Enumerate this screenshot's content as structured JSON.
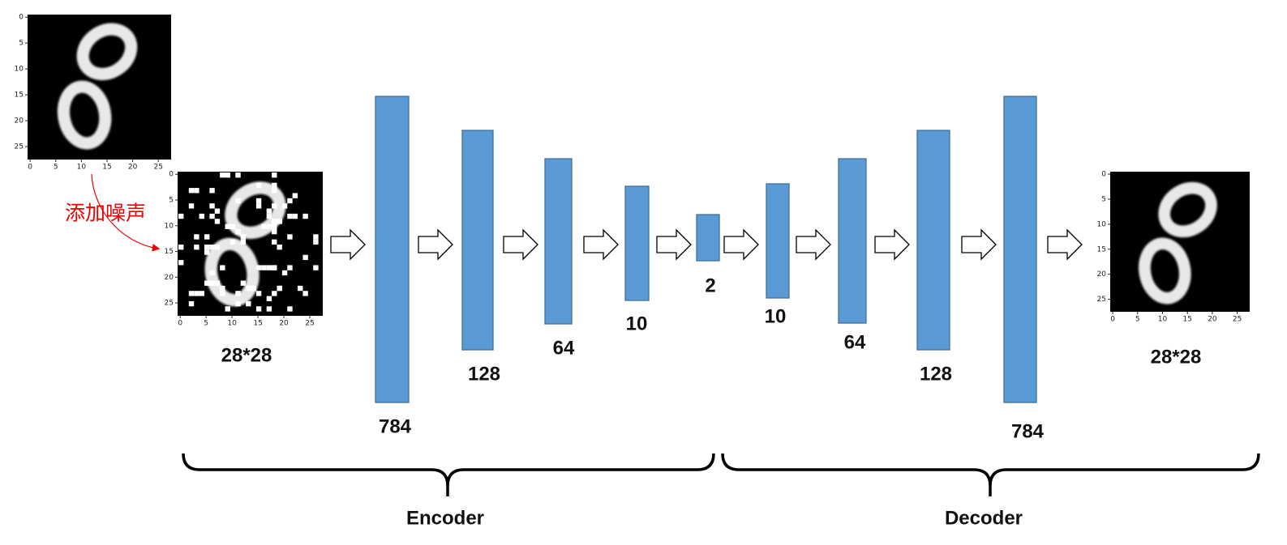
{
  "images": [
    {
      "xticks": [
        0,
        5,
        10,
        15,
        20,
        25
      ],
      "yticks": [
        0,
        5,
        10,
        15,
        20,
        25
      ]
    },
    {
      "xticks": [
        0,
        5,
        10,
        15,
        20,
        25
      ],
      "yticks": [
        0,
        5,
        10,
        15,
        20,
        25
      ]
    },
    {
      "xticks": [
        0,
        5,
        10,
        15,
        20,
        25
      ],
      "yticks": [
        0,
        5,
        10,
        15,
        20,
        25
      ]
    }
  ],
  "noise_label": "添加噪声",
  "input_size": "28*28",
  "output_size": "28*28",
  "layers": [
    {
      "label": 784
    },
    {
      "label": 128
    },
    {
      "label": 64
    },
    {
      "label": 10
    },
    {
      "label": 2
    },
    {
      "label": 10
    },
    {
      "label": 64
    },
    {
      "label": 128
    },
    {
      "label": 784
    }
  ],
  "encoder_label": "Encoder",
  "decoder_label": "Decoder"
}
